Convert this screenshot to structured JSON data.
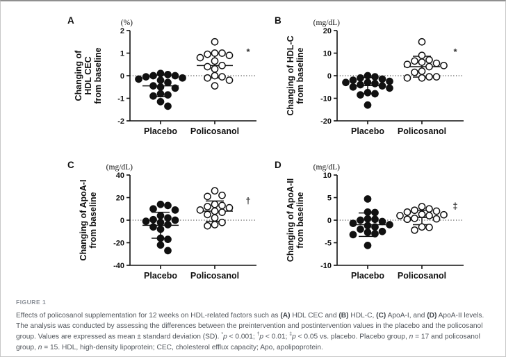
{
  "caption": {
    "label": "FIGURE 1",
    "text": "Effects of policosanol supplementation for 12 weeks on HDL-related factors such as (A) HDL CEC and (B) HDL-C, (C) ApoA-I, and (D) ApoA-II levels. The analysis was conducted by assessing the differences between the preintervention and postintervention values in the placebo and the policosanol group. Values are expressed as mean ± standard deviation (SD). *p < 0.001; †p < 0.01; ‡p < 0.05 vs. placebo. Placebo group, n = 17 and policosanol group, n = 15. HDL, high-density lipoprotein; CEC, cholesterol efflux capacity; Apo, apolipoprotein."
  },
  "colors": {
    "ink": "#111111",
    "caption_gray": "#50555b",
    "label_gray": "#8d929a"
  },
  "chart_data": [
    {
      "type": "scatter",
      "panel": "A",
      "unit": "(%)",
      "ylabel": "Changing of HDL CEC from baseline",
      "ylabel_lines": [
        "Changing of",
        "HDL CEC",
        "from baseline"
      ],
      "ylim": [
        -2,
        2
      ],
      "yticks": [
        2,
        1,
        0,
        -1,
        -2
      ],
      "categories": [
        "Placebo",
        "Policosanol"
      ],
      "significance": {
        "symbol": "*",
        "y": 1.05,
        "meaning": "p < 0.001 vs. placebo"
      },
      "series": [
        {
          "name": "Placebo",
          "marker": "filled",
          "n": 17,
          "mean": -0.45,
          "sd": 0.48,
          "values": [
            0.1,
            0.05,
            0,
            0,
            -0.05,
            -0.1,
            -0.15,
            -0.2,
            -0.3,
            -0.45,
            -0.5,
            -0.55,
            -0.8,
            -0.85,
            -0.9,
            -1.15,
            -1.35
          ]
        },
        {
          "name": "Policosanol",
          "marker": "open",
          "n": 15,
          "mean": 0.45,
          "sd": 0.55,
          "values": [
            1.5,
            1.0,
            1.0,
            0.95,
            0.9,
            0.8,
            0.65,
            0.45,
            0.4,
            0.3,
            0,
            -0.05,
            -0.1,
            -0.2,
            -0.45
          ]
        }
      ]
    },
    {
      "type": "scatter",
      "panel": "B",
      "unit": "(mg/dL)",
      "ylabel": "Changing of HDL-C from baseline",
      "ylabel_lines": [
        "Changing of HDL-C",
        "from baseline"
      ],
      "ylim": [
        -20,
        20
      ],
      "yticks": [
        20,
        10,
        0,
        -10,
        -20
      ],
      "categories": [
        "Placebo",
        "Policosanol"
      ],
      "significance": {
        "symbol": "*",
        "y": 10.5,
        "meaning": "p < 0.001 vs. placebo"
      },
      "series": [
        {
          "name": "Placebo",
          "marker": "filled",
          "n": 17,
          "mean": -4.4,
          "sd": 3.6,
          "values": [
            0,
            -0.5,
            -1,
            -1.5,
            -2,
            -2.5,
            -3,
            -3,
            -3.5,
            -4,
            -4.5,
            -5,
            -5.5,
            -7.5,
            -8,
            -8.5,
            -13
          ]
        },
        {
          "name": "Policosanol",
          "marker": "open",
          "n": 15,
          "mean": 4.0,
          "sd": 4.6,
          "values": [
            15,
            9,
            7,
            6.5,
            6,
            5.5,
            5,
            4.5,
            4,
            2,
            1.5,
            -0.5,
            -0.5,
            -1,
            -1
          ]
        }
      ]
    },
    {
      "type": "scatter",
      "panel": "C",
      "unit": "(mg/dL)",
      "ylabel": "Changing of ApoA-I from baseline",
      "ylabel_lines": [
        "Changing of ApoA-I",
        "from baseline"
      ],
      "ylim": [
        -40,
        40
      ],
      "yticks": [
        40,
        20,
        0,
        -20,
        -40
      ],
      "categories": [
        "Placebo",
        "Policosanol"
      ],
      "significance": {
        "symbol": "†",
        "y": 17,
        "meaning": "p < 0.01 vs. placebo"
      },
      "series": [
        {
          "name": "Placebo",
          "marker": "filled",
          "n": 17,
          "mean": -4.5,
          "sd": 11.5,
          "values": [
            14,
            13,
            10,
            9,
            4,
            2,
            0.5,
            0,
            -1,
            -2,
            -4,
            -6,
            -8,
            -16,
            -17,
            -22,
            -27
          ]
        },
        {
          "name": "Policosanol",
          "marker": "open",
          "n": 15,
          "mean": 8.0,
          "sd": 9.0,
          "values": [
            26,
            22,
            21,
            14,
            13,
            12,
            11,
            9,
            8,
            7,
            5,
            2,
            -2,
            -4,
            -5
          ]
        }
      ]
    },
    {
      "type": "scatter",
      "panel": "D",
      "unit": "(mg/dL)",
      "ylabel": "Changing of ApoA-II from baseline",
      "ylabel_lines": [
        "Changing of ApoA-II",
        "from baseline"
      ],
      "ylim": [
        -10,
        10
      ],
      "yticks": [
        10,
        5,
        0,
        -5,
        -10
      ],
      "categories": [
        "Placebo",
        "Policosanol"
      ],
      "significance": {
        "symbol": "‡",
        "y": 3.1,
        "meaning": "p < 0.05 vs. placebo"
      },
      "series": [
        {
          "name": "Placebo",
          "marker": "filled",
          "n": 17,
          "mean": -1.0,
          "sd": 2.6,
          "values": [
            4.7,
            1.8,
            1.7,
            0.3,
            0.2,
            0,
            -0.3,
            -0.7,
            -1,
            -1.2,
            -1.5,
            -2,
            -2.5,
            -2.7,
            -3,
            -3.2,
            -5.6
          ]
        },
        {
          "name": "Policosanol",
          "marker": "open",
          "n": 15,
          "mean": 0.6,
          "sd": 1.6,
          "values": [
            3.0,
            2.5,
            2.2,
            2.0,
            1.8,
            1.3,
            1.2,
            1.0,
            1.0,
            0.4,
            0.3,
            0.2,
            -1.5,
            -1.6,
            -2.2
          ]
        }
      ]
    }
  ]
}
